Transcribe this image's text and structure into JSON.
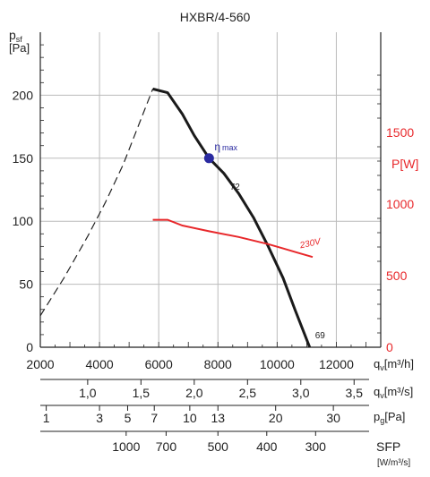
{
  "chart_data": {
    "type": "line",
    "title": "HXBR/4-560",
    "colors": {
      "pressure": "#1a1a1a",
      "power": "#e8282b",
      "eta_marker": "#2a2aa0",
      "grid": "#bbbbbb"
    },
    "left_axis": {
      "label_main": "p",
      "label_sub": "sf",
      "unit": "[Pa]",
      "ylim": [
        0,
        250
      ],
      "ticks": [
        "0",
        "50",
        "100",
        "150",
        "200"
      ],
      "tick_values": [
        0,
        50,
        100,
        150,
        200
      ]
    },
    "right_axis": {
      "label": "P[W]",
      "ylim": [
        0,
        2200
      ],
      "ticks": [
        "0",
        "500",
        "1000",
        "1500"
      ],
      "tick_values": [
        0,
        500,
        1000,
        1500
      ]
    },
    "x_axis": {
      "unit": "q_v[m³/h]",
      "unit_main": "q",
      "unit_sub": "v",
      "unit_rest": "[m³/h]",
      "xlim": [
        2000,
        13500
      ],
      "ticks": [
        "2000",
        "4000",
        "6000",
        "8000",
        "10000",
        "12000"
      ],
      "tick_values": [
        2000,
        4000,
        6000,
        8000,
        10000,
        12000
      ]
    },
    "secondary_scales": [
      {
        "unit_main": "q",
        "unit_sub": "v",
        "unit_rest": "[m³/s]",
        "labels": [
          "1,0",
          "1,5",
          "2,0",
          "2,5",
          "3,0",
          "3,5"
        ],
        "x_positions": [
          3600,
          5400,
          7200,
          9000,
          10800,
          12600
        ]
      },
      {
        "unit_main": "p",
        "unit_sub": "g",
        "unit_rest": "[Pa]",
        "labels": [
          "1",
          "3",
          "5",
          "7",
          "10",
          "13",
          "20",
          "30"
        ],
        "x_positions": [
          2200,
          4000,
          4950,
          5850,
          7050,
          8000,
          9950,
          11900
        ]
      },
      {
        "unit_main": "SFP",
        "unit_rest": "[W/m³/s]",
        "labels": [
          "1000",
          "700",
          "500",
          "400",
          "300"
        ],
        "x_positions": [
          4900,
          6250,
          8000,
          9650,
          11300
        ]
      }
    ],
    "series": [
      {
        "role": "pressure-unstable",
        "x": [
          2000,
          2800,
          3600,
          4200,
          4800,
          5300,
          5800
        ],
        "y": [
          25,
          55,
          88,
          115,
          145,
          175,
          205
        ]
      },
      {
        "role": "pressure",
        "x": [
          5800,
          6300,
          6800,
          7200,
          7700,
          8200,
          8700,
          9200,
          9700,
          10200,
          10600,
          11100
        ],
        "y": [
          205,
          202,
          185,
          168,
          150,
          138,
          122,
          103,
          80,
          55,
          30,
          0
        ]
      },
      {
        "name": "230V",
        "role": "power",
        "x": [
          5800,
          6300,
          6800,
          7700,
          8700,
          9700,
          10200,
          10700,
          11200
        ],
        "y": [
          890,
          890,
          850,
          810,
          770,
          720,
          690,
          660,
          630
        ]
      }
    ],
    "annotations": [
      {
        "text": "η",
        "sub": "max",
        "x": 7700,
        "y": 150
      },
      {
        "text": "72",
        "x": 8800,
        "y": 130
      },
      {
        "text": "69",
        "x": 11100,
        "y": 5
      },
      {
        "text": "230V"
      }
    ]
  }
}
